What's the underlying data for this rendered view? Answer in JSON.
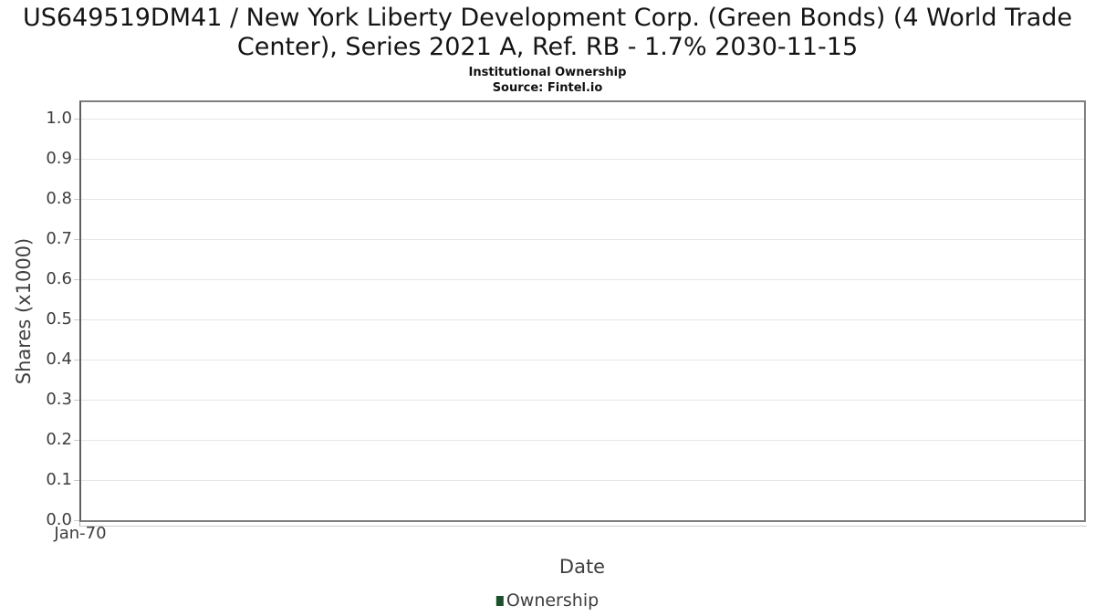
{
  "header": {
    "title": "US649519DM41 / New York Liberty Development Corp. (Green Bonds) (4 World Trade Center), Series 2021 A, Ref. RB - 1.7% 2030-11-15",
    "subtitle": "Institutional Ownership",
    "source": "Source: Fintel.io"
  },
  "chart_data": {
    "type": "line",
    "title": "US649519DM41 / New York Liberty Development Corp. (Green Bonds) (4 World Trade Center), Series 2021 A, Ref. RB - 1.7% 2030-11-15",
    "subtitle": "Institutional Ownership",
    "source": "Source: Fintel.io",
    "xlabel": "Date",
    "ylabel": "Shares (x1000)",
    "x_ticks": [
      "Jan-70"
    ],
    "y_ticks": [
      0.0,
      0.1,
      0.2,
      0.3,
      0.4,
      0.5,
      0.6,
      0.7,
      0.8,
      0.9,
      1.0
    ],
    "y_tick_decimals": 1,
    "ylim": [
      0.0,
      1.045
    ],
    "grid": true,
    "legend_position": "bottom-center",
    "series": [
      {
        "name": "Ownership",
        "color": "#1e4f2d",
        "x": [],
        "values": []
      }
    ]
  },
  "colors": {
    "accent_series": "#1e4f2d",
    "grid": "#e6e6e6",
    "spine": "#7f7f7f",
    "tick": "#c9c9c9",
    "tick_text": "#3d3d3d",
    "title_text": "#141414"
  }
}
